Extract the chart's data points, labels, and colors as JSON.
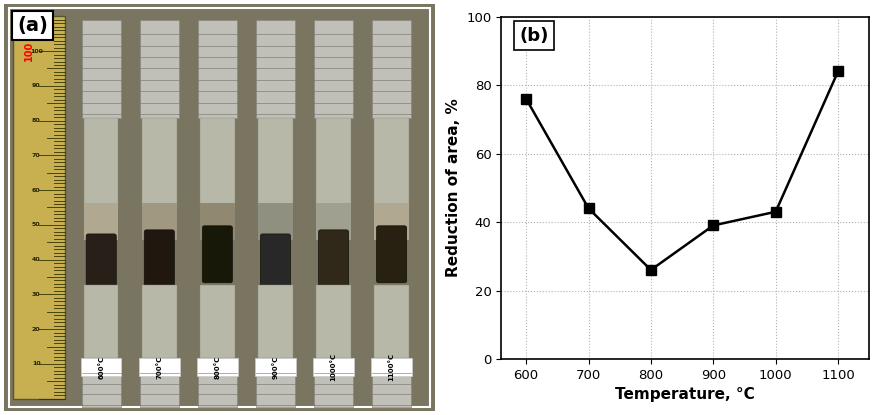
{
  "temperatures": [
    600,
    700,
    800,
    900,
    1000,
    1100
  ],
  "reduction_of_area": [
    76,
    44,
    26,
    39,
    43,
    84
  ],
  "xlabel": "Temperature, °C",
  "ylabel": "Reduction of area, %",
  "label_a": "(a)",
  "label_b": "(b)",
  "xlim": [
    560,
    1150
  ],
  "ylim": [
    0,
    100
  ],
  "xticks": [
    600,
    700,
    800,
    900,
    1000,
    1100
  ],
  "yticks": [
    0,
    20,
    40,
    60,
    80,
    100
  ],
  "grid_color": "#aaaaaa",
  "line_color": "#000000",
  "marker_color": "#000000",
  "marker_size": 7,
  "line_width": 1.8,
  "background_color": "#ffffff",
  "photo_bg": "#8a8060",
  "ruler_color": "#c8b060",
  "sample_labels": [
    "600°C",
    "700°C",
    "800°C",
    "900°C",
    "1000°C",
    "1100°C"
  ]
}
